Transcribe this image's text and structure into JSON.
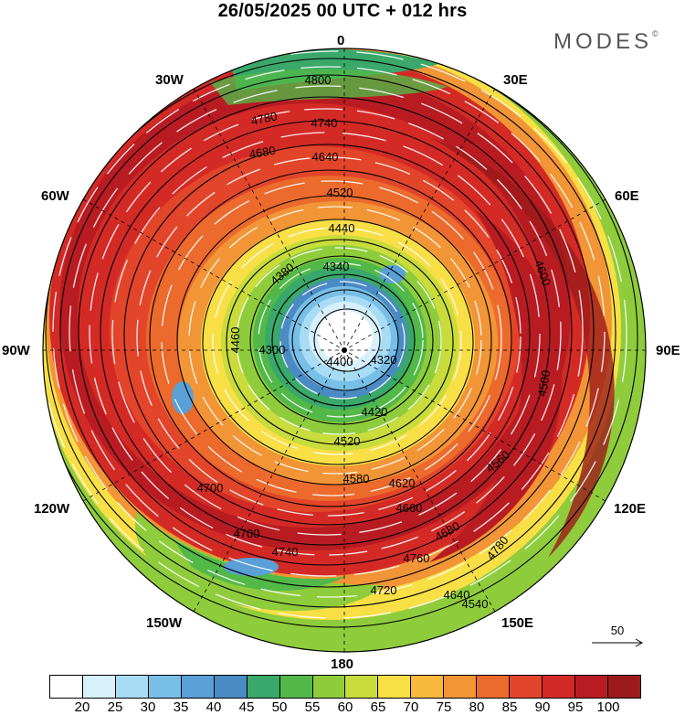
{
  "title": "26/05/2025  00 UTC  + 012 hrs",
  "brand": "MODES",
  "brand_mark": "©",
  "longitude_labels": {
    "n0": "0",
    "w30": "30W",
    "e30": "30E",
    "w60": "60W",
    "e60": "60E",
    "w90": "90W",
    "e90": "90E",
    "w120": "120W",
    "e120": "120E",
    "w150": "150W",
    "e150": "150E",
    "s180": "180"
  },
  "contour_labels": [
    "4800",
    "4780",
    "4740",
    "4680",
    "4640",
    "4520",
    "4440",
    "4380",
    "4340",
    "4300",
    "4320",
    "4400",
    "4460",
    "4420",
    "4520",
    "4580",
    "4620",
    "4660",
    "4680",
    "4700",
    "4740",
    "4760",
    "4780",
    "4720",
    "4640",
    "4540",
    "4600",
    "4500",
    "4560",
    "4700"
  ],
  "wind_scale": {
    "value": "50",
    "icon": "arrow-right-icon"
  },
  "colorbar": {
    "colors": [
      "#ffffff",
      "#d7f0fb",
      "#a8dcf5",
      "#78bfe8",
      "#5a9fd6",
      "#4a8bc4",
      "#3aa86a",
      "#52b848",
      "#8fcc3c",
      "#c8dc3c",
      "#f7df45",
      "#f7b83c",
      "#f29536",
      "#ec6a2c",
      "#e2452a",
      "#d42a26",
      "#b81c22",
      "#9c1a1c"
    ],
    "labels": [
      "20",
      "25",
      "30",
      "35",
      "40",
      "45",
      "50",
      "55",
      "60",
      "65",
      "70",
      "75",
      "80",
      "85",
      "90",
      "95",
      "100"
    ]
  }
}
